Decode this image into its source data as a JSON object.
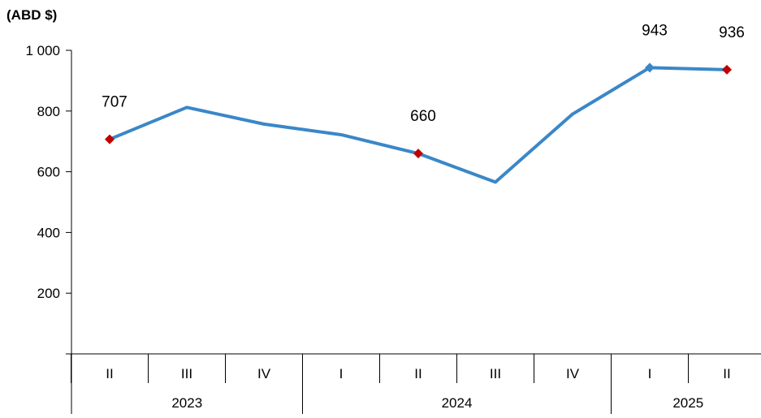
{
  "chart_data": {
    "type": "line",
    "unit_label": "(ABD $)",
    "ylim": [
      0,
      1000
    ],
    "yticks": [
      "",
      "200",
      "400",
      "600",
      "800",
      "1 000"
    ],
    "categories": [
      "II",
      "III",
      "IV",
      "I",
      "II",
      "III",
      "IV",
      "I",
      "II"
    ],
    "years": [
      {
        "label": "2023",
        "start": 0,
        "end": 2
      },
      {
        "label": "2024",
        "start": 3,
        "end": 6
      },
      {
        "label": "2025",
        "start": 7,
        "end": 8
      }
    ],
    "series": [
      {
        "values": [
          707,
          812,
          757,
          722,
          660,
          566,
          790,
          943,
          936
        ],
        "color": "#3a87c8"
      }
    ],
    "labeled_points": [
      {
        "index": 0,
        "label": "707",
        "marker": "diamond",
        "color": "#c00000"
      },
      {
        "index": 4,
        "label": "660",
        "marker": "diamond",
        "color": "#c00000"
      },
      {
        "index": 7,
        "label": "943",
        "marker": "diamond",
        "color": "#3a87c8"
      },
      {
        "index": 8,
        "label": "936",
        "marker": "diamond",
        "color": "#c00000"
      }
    ],
    "grid": false,
    "legend": "none"
  }
}
